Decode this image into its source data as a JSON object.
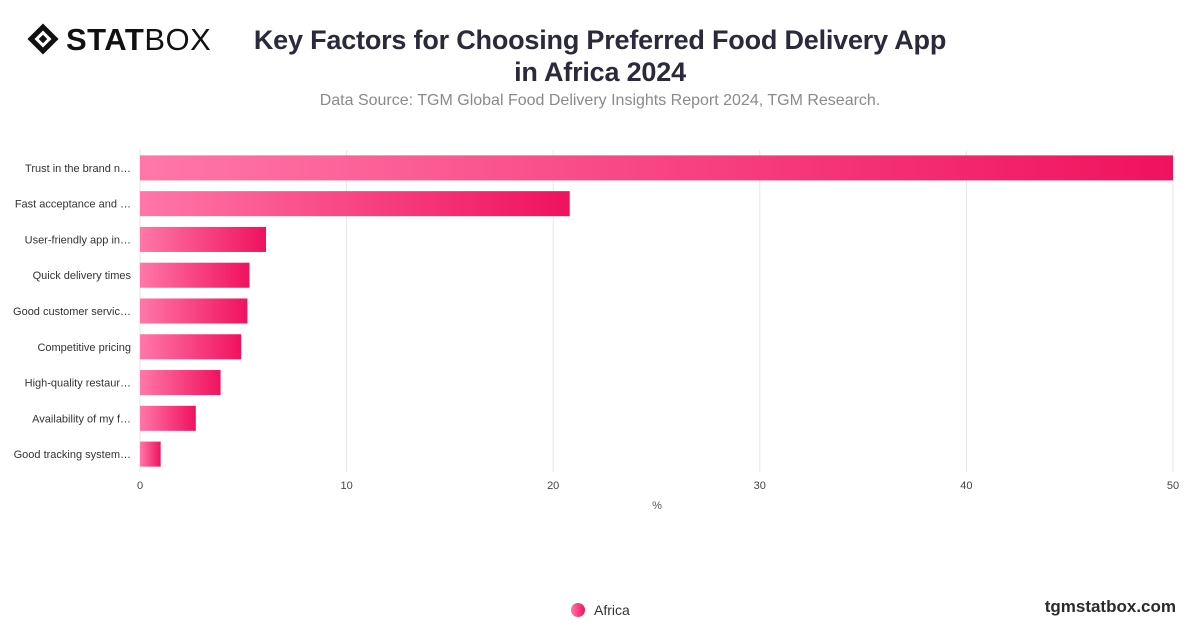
{
  "brand": {
    "logo_bold": "STAT",
    "logo_light": "BOX",
    "site": "tgmstatbox.com"
  },
  "header": {
    "title_line1": "Key Factors for Choosing Preferred Food Delivery App",
    "title_line2": "in Africa 2024",
    "subtitle": "Data Source: TGM Global Food Delivery Insights Report 2024, TGM Research."
  },
  "chart_data": {
    "type": "bar",
    "orientation": "horizontal",
    "categories": [
      "Trust in the brand n…",
      "Fast acceptance and …",
      "User-friendly app in…",
      "Quick delivery times",
      "Good customer servic…",
      "Competitive pricing",
      "High-quality restaur…",
      "Availability of my f…",
      "Good tracking system…"
    ],
    "series": [
      {
        "name": "Africa",
        "values": [
          50,
          20.8,
          6.1,
          5.3,
          5.2,
          4.9,
          3.9,
          2.7,
          1.0
        ]
      }
    ],
    "xlabel": "%",
    "xlim": [
      0,
      50
    ],
    "xticks": [
      0,
      10,
      20,
      30,
      40,
      50
    ],
    "grid": true,
    "legend": "bottom-center",
    "colors": {
      "bar_start": "#ff77a8",
      "bar_end": "#f0125e",
      "grid": "#e6e6e6"
    }
  }
}
